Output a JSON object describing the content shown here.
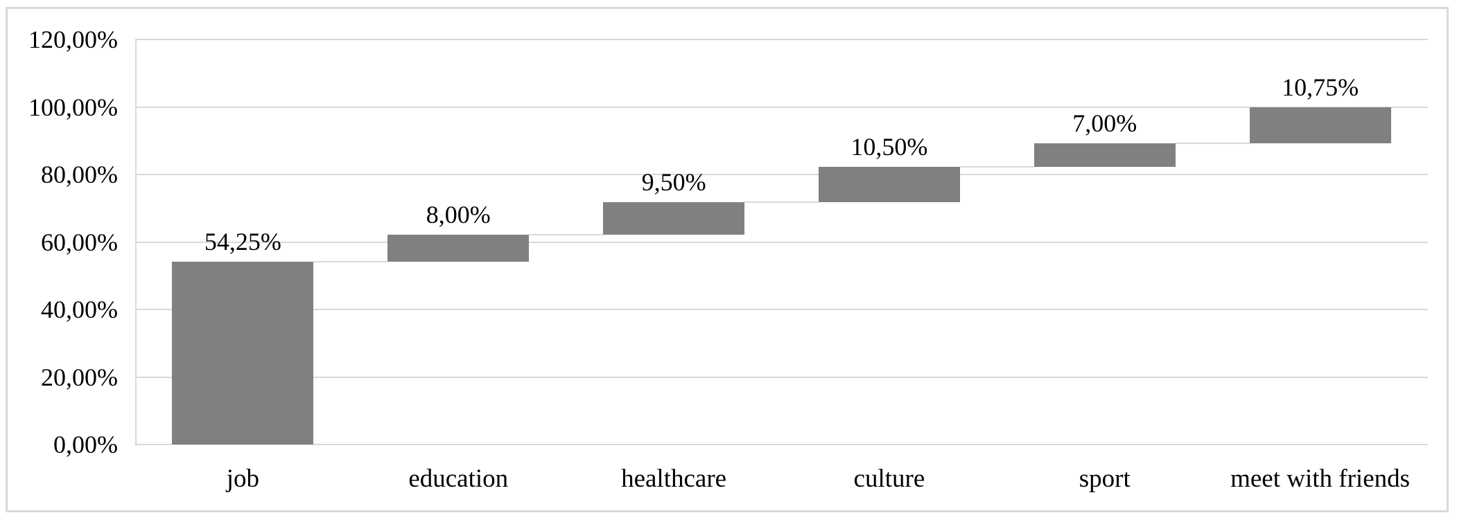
{
  "figure": {
    "background_color": "#ffffff",
    "frame_color": "#d9d9d9",
    "text_color": "#000000"
  },
  "chart_data": {
    "type": "bar",
    "variant": "waterfall",
    "title": "",
    "xlabel": "",
    "ylabel": "",
    "categories": [
      "job",
      "education",
      "healthcare",
      "culture",
      "sport",
      "meet with friends"
    ],
    "values": [
      54.25,
      8.0,
      9.5,
      10.5,
      7.0,
      10.75
    ],
    "data_labels": [
      "54,25%",
      "8,00%",
      "9,50%",
      "10,50%",
      "7,00%",
      "10,75%"
    ],
    "cumulative": [
      54.25,
      62.25,
      71.75,
      82.25,
      89.25,
      100.0
    ],
    "y_ticks": [
      {
        "value": 0,
        "label": "0,00%"
      },
      {
        "value": 20,
        "label": "20,00%"
      },
      {
        "value": 40,
        "label": "40,00%"
      },
      {
        "value": 60,
        "label": "60,00%"
      },
      {
        "value": 80,
        "label": "80,00%"
      },
      {
        "value": 100,
        "label": "100,00%"
      },
      {
        "value": 120,
        "label": "120,00%"
      }
    ],
    "ylim": [
      0,
      120
    ],
    "grid": true,
    "legend": "none",
    "bar_color": "#808080",
    "gridline_color": "#d9d9d9",
    "connector_color": "#d9d9d9",
    "axis_line_color": "#d9d9d9"
  }
}
